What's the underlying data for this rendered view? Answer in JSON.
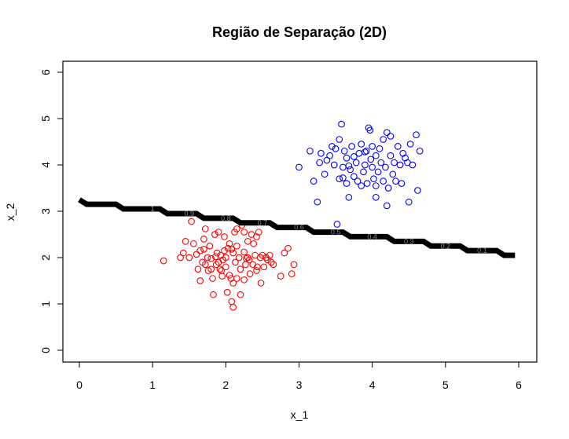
{
  "chart_data": {
    "type": "scatter",
    "title": "Região de Separação (2D)",
    "xlabel": "x_1",
    "ylabel": "x_2",
    "xlim": [
      -0.25,
      6.25
    ],
    "ylim": [
      -0.25,
      6.3
    ],
    "xticks": [
      "0",
      "1",
      "2",
      "3",
      "4",
      "5",
      "6"
    ],
    "yticks": [
      "0",
      "1",
      "2",
      "3",
      "4",
      "5",
      "6"
    ],
    "grid": false,
    "series": [
      {
        "color": "#ff0000",
        "marker": "open-circle",
        "points": [
          [
            1.15,
            1.93
          ],
          [
            1.38,
            2.0
          ],
          [
            1.42,
            2.1
          ],
          [
            1.45,
            2.35
          ],
          [
            1.5,
            2.0
          ],
          [
            1.53,
            2.78
          ],
          [
            1.56,
            2.3
          ],
          [
            1.6,
            2.07
          ],
          [
            1.62,
            1.75
          ],
          [
            1.65,
            1.5
          ],
          [
            1.65,
            2.15
          ],
          [
            1.68,
            1.9
          ],
          [
            1.7,
            2.4
          ],
          [
            1.72,
            2.62
          ],
          [
            1.72,
            1.85
          ],
          [
            1.75,
            2.0
          ],
          [
            1.76,
            1.72
          ],
          [
            1.78,
            2.25
          ],
          [
            1.8,
            1.98
          ],
          [
            1.8,
            1.75
          ],
          [
            1.82,
            1.55
          ],
          [
            1.83,
            1.2
          ],
          [
            1.85,
            2.5
          ],
          [
            1.87,
            1.85
          ],
          [
            1.88,
            2.1
          ],
          [
            1.9,
            1.9
          ],
          [
            1.9,
            2.55
          ],
          [
            1.92,
            1.75
          ],
          [
            1.93,
            2.05
          ],
          [
            1.95,
            1.6
          ],
          [
            1.96,
            1.95
          ],
          [
            1.98,
            2.15
          ],
          [
            2.0,
            2.0
          ],
          [
            2.0,
            1.8
          ],
          [
            2.02,
            1.25
          ],
          [
            2.03,
            2.2
          ],
          [
            2.05,
            2.3
          ],
          [
            2.05,
            1.62
          ],
          [
            2.07,
            1.55
          ],
          [
            2.08,
            1.05
          ],
          [
            2.1,
            0.93
          ],
          [
            2.1,
            2.1
          ],
          [
            2.1,
            1.45
          ],
          [
            2.12,
            2.55
          ],
          [
            2.13,
            1.9
          ],
          [
            2.15,
            2.25
          ],
          [
            2.15,
            1.55
          ],
          [
            2.18,
            2.0
          ],
          [
            2.2,
            1.2
          ],
          [
            2.2,
            1.75
          ],
          [
            2.22,
            2.7
          ],
          [
            2.25,
            2.12
          ],
          [
            2.25,
            1.52
          ],
          [
            2.27,
            1.85
          ],
          [
            2.3,
            2.0
          ],
          [
            2.3,
            2.35
          ],
          [
            2.32,
            1.95
          ],
          [
            2.33,
            1.65
          ],
          [
            2.35,
            2.5
          ],
          [
            2.37,
            1.85
          ],
          [
            2.4,
            2.05
          ],
          [
            2.42,
            2.45
          ],
          [
            2.43,
            1.8
          ],
          [
            2.45,
            2.55
          ],
          [
            2.47,
            2.0
          ],
          [
            2.48,
            1.45
          ],
          [
            2.5,
            2.05
          ],
          [
            2.52,
            1.8
          ],
          [
            2.55,
            2.0
          ],
          [
            2.57,
            1.95
          ],
          [
            2.6,
            2.05
          ],
          [
            2.62,
            1.9
          ],
          [
            2.65,
            1.85
          ],
          [
            2.75,
            1.6
          ],
          [
            2.8,
            2.1
          ],
          [
            2.85,
            2.2
          ],
          [
            2.9,
            1.65
          ],
          [
            2.93,
            1.85
          ],
          [
            2.25,
            2.55
          ],
          [
            2.38,
            2.3
          ],
          [
            1.98,
            2.45
          ],
          [
            2.08,
            2.18
          ],
          [
            1.86,
            2.02
          ],
          [
            2.15,
            2.62
          ],
          [
            1.7,
            2.18
          ],
          [
            2.28,
            1.98
          ],
          [
            1.94,
            1.72
          ],
          [
            2.42,
            1.72
          ]
        ]
      },
      {
        "color": "#0000ff",
        "marker": "open-circle",
        "points": [
          [
            3.0,
            3.95
          ],
          [
            3.15,
            4.3
          ],
          [
            3.2,
            3.65
          ],
          [
            3.25,
            3.2
          ],
          [
            3.28,
            4.05
          ],
          [
            3.3,
            4.25
          ],
          [
            3.35,
            3.8
          ],
          [
            3.38,
            4.1
          ],
          [
            3.42,
            4.2
          ],
          [
            3.45,
            4.4
          ],
          [
            3.48,
            4.0
          ],
          [
            3.5,
            4.35
          ],
          [
            3.52,
            2.72
          ],
          [
            3.55,
            3.7
          ],
          [
            3.55,
            4.55
          ],
          [
            3.58,
            4.88
          ],
          [
            3.6,
            3.95
          ],
          [
            3.62,
            4.3
          ],
          [
            3.65,
            3.6
          ],
          [
            3.65,
            4.15
          ],
          [
            3.68,
            3.3
          ],
          [
            3.7,
            3.9
          ],
          [
            3.72,
            4.4
          ],
          [
            3.75,
            3.75
          ],
          [
            3.78,
            4.05
          ],
          [
            3.8,
            3.65
          ],
          [
            3.82,
            4.25
          ],
          [
            3.85,
            3.55
          ],
          [
            3.85,
            4.45
          ],
          [
            3.88,
            3.85
          ],
          [
            3.9,
            4.0
          ],
          [
            3.92,
            4.3
          ],
          [
            3.93,
            3.6
          ],
          [
            3.95,
            4.8
          ],
          [
            3.97,
            4.75
          ],
          [
            4.0,
            3.95
          ],
          [
            4.0,
            4.4
          ],
          [
            4.02,
            3.7
          ],
          [
            4.05,
            3.3
          ],
          [
            4.05,
            4.2
          ],
          [
            4.08,
            3.85
          ],
          [
            4.1,
            4.35
          ],
          [
            4.12,
            4.05
          ],
          [
            4.15,
            3.65
          ],
          [
            4.15,
            4.55
          ],
          [
            4.18,
            3.95
          ],
          [
            4.2,
            3.12
          ],
          [
            4.2,
            4.7
          ],
          [
            4.22,
            3.5
          ],
          [
            4.25,
            4.2
          ],
          [
            4.28,
            3.8
          ],
          [
            4.3,
            4.05
          ],
          [
            4.32,
            3.65
          ],
          [
            4.35,
            4.4
          ],
          [
            4.38,
            4.0
          ],
          [
            4.4,
            3.6
          ],
          [
            4.42,
            4.25
          ],
          [
            4.45,
            4.15
          ],
          [
            4.48,
            4.05
          ],
          [
            4.5,
            3.2
          ],
          [
            4.52,
            4.45
          ],
          [
            4.55,
            4.0
          ],
          [
            4.6,
            4.65
          ],
          [
            4.62,
            3.45
          ],
          [
            4.65,
            4.3
          ],
          [
            3.9,
            4.28
          ],
          [
            3.98,
            4.12
          ],
          [
            4.05,
            3.55
          ],
          [
            3.75,
            4.18
          ],
          [
            4.25,
            4.62
          ],
          [
            3.68,
            3.98
          ],
          [
            3.6,
            3.72
          ]
        ]
      }
    ],
    "decision_boundary": {
      "color": "#000000",
      "label_values": [
        "1",
        "0.9",
        "0.8",
        "0.7",
        "0.6",
        "0.5",
        "0.4",
        "0.3",
        "0.2",
        "0.1"
      ],
      "x": [
        0.0,
        0.1,
        0.5,
        0.6,
        1.1,
        1.2,
        1.6,
        1.7,
        2.1,
        2.2,
        2.6,
        2.7,
        3.1,
        3.2,
        3.6,
        3.7,
        4.2,
        4.3,
        4.7,
        4.8,
        5.2,
        5.3,
        5.7,
        5.8,
        5.95
      ],
      "y": [
        3.25,
        3.15,
        3.15,
        3.05,
        3.05,
        2.95,
        2.95,
        2.85,
        2.85,
        2.75,
        2.75,
        2.65,
        2.65,
        2.55,
        2.55,
        2.45,
        2.45,
        2.35,
        2.35,
        2.25,
        2.25,
        2.15,
        2.15,
        2.05,
        2.05
      ]
    }
  }
}
